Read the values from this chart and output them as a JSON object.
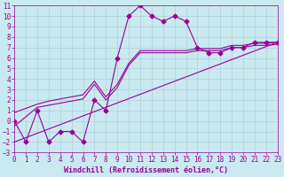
{
  "xlabel": "Windchill (Refroidissement éolien,°C)",
  "xlim": [
    0,
    23
  ],
  "ylim": [
    -3,
    11
  ],
  "xticks": [
    0,
    1,
    2,
    3,
    4,
    5,
    6,
    7,
    8,
    9,
    10,
    11,
    12,
    13,
    14,
    15,
    16,
    17,
    18,
    19,
    20,
    21,
    22,
    23
  ],
  "yticks": [
    -3,
    -2,
    -1,
    0,
    1,
    2,
    3,
    4,
    5,
    6,
    7,
    8,
    9,
    10,
    11
  ],
  "bg_color": "#c8eaf0",
  "line_color": "#990099",
  "grid_color": "#aabbcc",
  "line1_x": [
    0,
    1,
    2,
    3,
    4,
    5,
    6,
    7,
    8,
    9,
    10,
    11,
    12,
    13,
    14,
    15,
    16,
    17,
    18,
    19,
    20,
    21,
    22,
    23
  ],
  "line1_y": [
    0,
    -2,
    1,
    -2,
    -1,
    -1,
    -2,
    2,
    1,
    6,
    10,
    11,
    10,
    9.5,
    10,
    9.5,
    7,
    6.5,
    6.5,
    7,
    7,
    7.5,
    7.5,
    7.5
  ],
  "line2_x": [
    0,
    23
  ],
  "line2_y": [
    -2.0,
    7.5
  ],
  "line3_x": [
    0,
    2,
    3,
    4,
    5,
    6,
    7,
    8,
    9,
    10,
    11,
    12,
    13,
    14,
    15,
    16,
    17,
    18,
    19,
    20,
    21,
    22,
    23
  ],
  "line3_y": [
    -0.5,
    1.3,
    1.5,
    1.7,
    1.9,
    2.1,
    3.5,
    2.0,
    3.2,
    5.3,
    6.5,
    6.5,
    6.5,
    6.5,
    6.5,
    6.7,
    6.7,
    6.7,
    7.0,
    7.0,
    7.2,
    7.2,
    7.3
  ],
  "line4_x": [
    0,
    2,
    3,
    4,
    5,
    6,
    7,
    8,
    9,
    10,
    11,
    12,
    13,
    14,
    15,
    16,
    17,
    18,
    19,
    20,
    21,
    22,
    23
  ],
  "line4_y": [
    0.8,
    1.6,
    1.9,
    2.1,
    2.3,
    2.5,
    3.8,
    2.3,
    3.5,
    5.5,
    6.7,
    6.7,
    6.7,
    6.7,
    6.7,
    6.9,
    6.9,
    6.9,
    7.2,
    7.2,
    7.4,
    7.4,
    7.5
  ],
  "marker_size": 2.5,
  "line_width": 0.8,
  "tick_fontsize": 5.5,
  "xlabel_fontsize": 6
}
